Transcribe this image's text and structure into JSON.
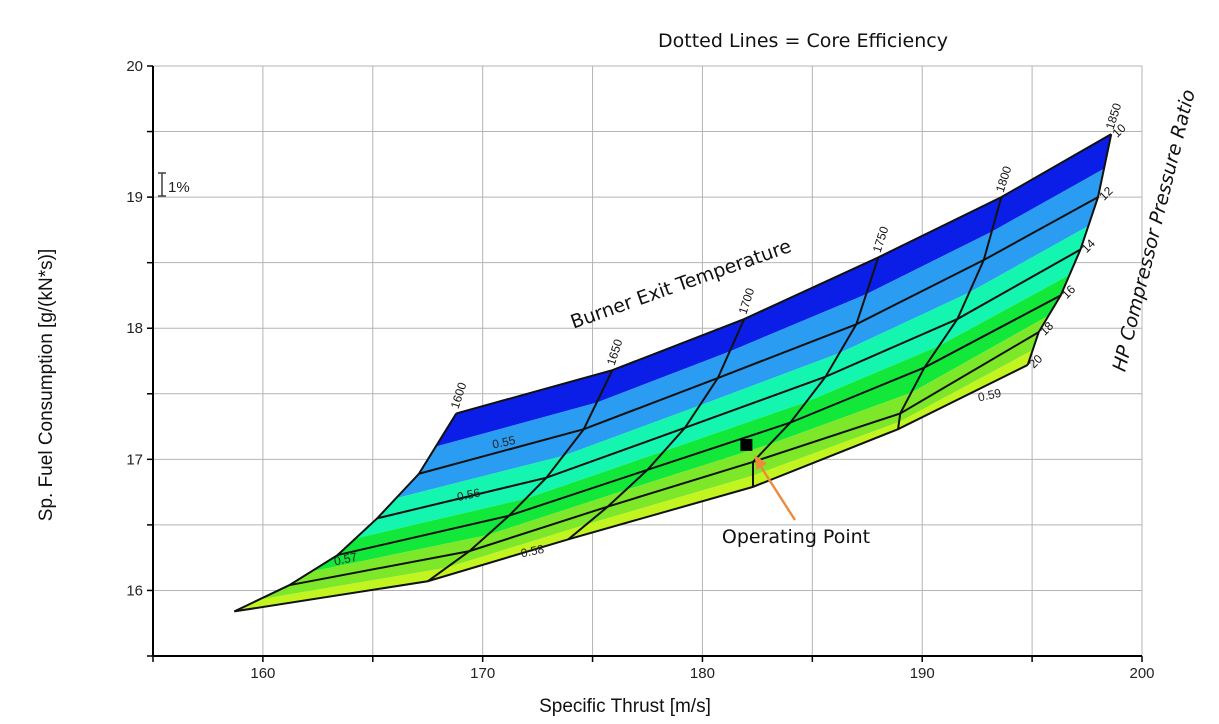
{
  "chart_data": {
    "type": "area",
    "title": "Dotted Lines = Core Efficiency",
    "xlabel": "Specific Thrust [m/s]",
    "ylabel": "Sp. Fuel Consumption [g/(kN*s)]",
    "xlim": [
      155,
      200
    ],
    "ylim": [
      15.5,
      20
    ],
    "xticks": [
      160,
      170,
      180,
      190,
      200
    ],
    "yticks": [
      16,
      17,
      18,
      19,
      20
    ],
    "grid": true,
    "scale_marker_label": "1%",
    "burner_exit_temperature_label": "Burner Exit Temperature",
    "hp_pressure_ratio_label": "HP Compressor Pressure Ratio",
    "operating_point": {
      "label": "Operating Point",
      "x": 182.0,
      "y": 17.11
    },
    "temperatures": [
      "1600",
      "1650",
      "1700",
      "1750",
      "1800",
      "1850"
    ],
    "pressure_ratios": [
      "10",
      "12",
      "14",
      "16",
      "18",
      "20"
    ],
    "grid_points": [
      [
        [
          168.8,
          17.35
        ],
        [
          167.1,
          16.89
        ],
        [
          165.2,
          16.55
        ],
        [
          163.4,
          16.27
        ],
        [
          161.2,
          16.04
        ],
        [
          158.7,
          15.84
        ]
      ],
      [
        [
          175.9,
          17.68
        ],
        [
          174.6,
          17.23
        ],
        [
          172.9,
          16.86
        ],
        [
          171.2,
          16.57
        ],
        [
          169.4,
          16.3
        ],
        [
          167.5,
          16.07
        ]
      ],
      [
        [
          181.9,
          18.07
        ],
        [
          180.7,
          17.62
        ],
        [
          179.2,
          17.24
        ],
        [
          177.5,
          16.92
        ],
        [
          175.7,
          16.64
        ],
        [
          173.9,
          16.39
        ]
      ],
      [
        [
          188.0,
          18.54
        ],
        [
          187.0,
          18.03
        ],
        [
          185.6,
          17.63
        ],
        [
          184.0,
          17.28
        ],
        [
          182.3,
          16.98
        ],
        [
          182.3,
          16.79
        ]
      ],
      [
        [
          193.6,
          19.0
        ],
        [
          192.8,
          18.52
        ],
        [
          191.6,
          18.07
        ],
        [
          190.1,
          17.7
        ],
        [
          189.0,
          17.35
        ],
        [
          188.9,
          17.23
        ]
      ],
      [
        [
          198.6,
          19.48
        ],
        [
          198.0,
          19.0
        ],
        [
          197.2,
          18.6
        ],
        [
          196.3,
          18.25
        ],
        [
          195.3,
          17.97
        ],
        [
          194.8,
          17.72
        ]
      ]
    ],
    "core_efficiency_labels": [
      {
        "value": "0.55",
        "x": 171.0,
        "y": 17.1
      },
      {
        "value": "0.56",
        "x": 169.4,
        "y": 16.7
      },
      {
        "value": "0.57",
        "x": 163.8,
        "y": 16.21
      },
      {
        "value": "0.58",
        "x": 172.3,
        "y": 16.27
      },
      {
        "value": "0.59",
        "x": 193.1,
        "y": 17.46
      }
    ],
    "colors": {
      "band_1": "#0a1ee8",
      "band_2": "#2a9cf2",
      "band_3": "#14f5b0",
      "band_4": "#12e83a",
      "band_5": "#7de82a",
      "band_6": "#c2f520",
      "arrow": "#ee8a3a",
      "operating_point": "#000000",
      "grid": "#b4b4b4"
    }
  }
}
